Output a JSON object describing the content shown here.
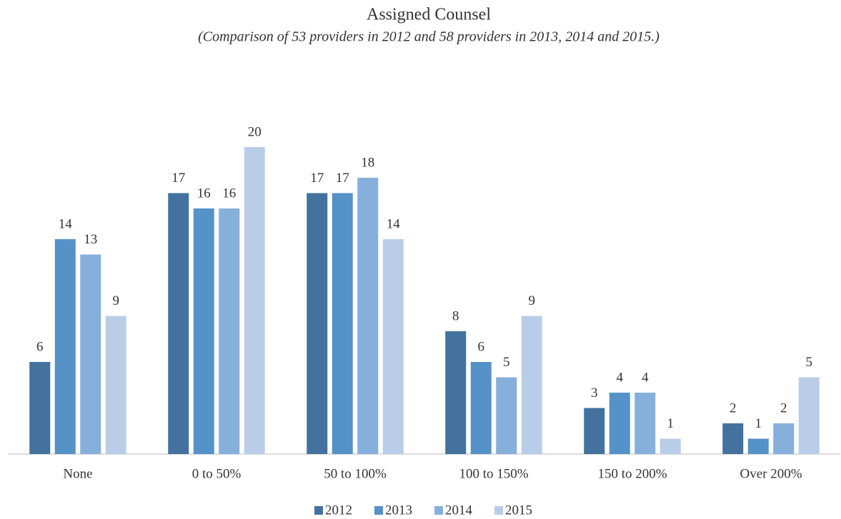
{
  "chart_data": {
    "type": "bar",
    "title": "Assigned Counsel",
    "subtitle": "(Comparison of 53 providers in 2012 and 58 providers in 2013, 2014 and 2015.)",
    "categories": [
      "None",
      "0 to 50%",
      "50 to 100%",
      "100 to 150%",
      "150 to 200%",
      "Over 200%"
    ],
    "series": [
      {
        "name": "2012",
        "color": "#44729e",
        "values": [
          6,
          17,
          17,
          8,
          3,
          2
        ]
      },
      {
        "name": "2013",
        "color": "#5592c8",
        "values": [
          14,
          16,
          17,
          6,
          4,
          1
        ]
      },
      {
        "name": "2014",
        "color": "#87afdc",
        "values": [
          13,
          16,
          18,
          5,
          4,
          2
        ]
      },
      {
        "name": "2015",
        "color": "#b9cde8",
        "values": [
          9,
          20,
          14,
          9,
          1,
          5
        ]
      }
    ],
    "ylim": [
      0,
      20
    ],
    "legend": "bottom"
  }
}
